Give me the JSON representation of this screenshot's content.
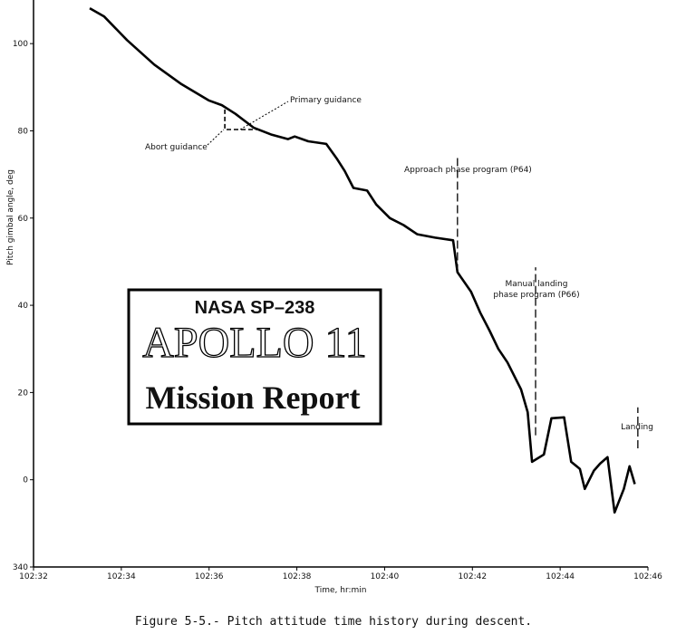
{
  "chart_data": {
    "type": "line",
    "y_label": "Pitch gimbal angle, deg",
    "x_label": "Time, hr:min",
    "caption": "Figure 5-5.- Pitch attitude time history during descent.",
    "xlim": [
      32,
      46
    ],
    "ylim": [
      -20,
      110
    ],
    "xticks": [
      {
        "value": 32,
        "label": "102:32"
      },
      {
        "value": 34,
        "label": "102:34"
      },
      {
        "value": 36,
        "label": "102:36"
      },
      {
        "value": 38,
        "label": "102:38"
      },
      {
        "value": 40,
        "label": "102:40"
      },
      {
        "value": 42,
        "label": "102:42"
      },
      {
        "value": 44,
        "label": "102:44"
      },
      {
        "value": 46,
        "label": "102:46"
      }
    ],
    "yticks": [
      {
        "value": -20,
        "label": "340"
      },
      0,
      20,
      40,
      60,
      80,
      100
    ],
    "series": [
      {
        "name": "Primary guidance",
        "color": "#000000",
        "x": [
          33.28,
          33.61,
          34.13,
          34.75,
          35.37,
          35.99,
          36.29,
          36.6,
          37.02,
          37.43,
          37.8,
          37.95,
          38.26,
          38.67,
          38.92,
          39.09,
          39.29,
          39.6,
          39.81,
          40.12,
          40.43,
          40.74,
          41.15,
          41.56,
          41.66,
          41.97,
          42.18,
          42.39,
          42.59,
          42.8,
          43.11,
          43.26,
          43.36,
          43.63,
          43.8,
          44.09,
          44.25,
          44.45,
          44.56,
          44.77,
          44.91,
          45.08,
          45.24,
          45.45,
          45.58,
          45.7
        ],
        "values": [
          108.1,
          106.2,
          100.8,
          95.2,
          90.7,
          87.0,
          85.9,
          83.9,
          80.7,
          79.1,
          78.1,
          78.7,
          77.6,
          77.0,
          73.5,
          70.8,
          66.9,
          66.3,
          63.1,
          60.0,
          58.4,
          56.3,
          55.5,
          54.9,
          47.6,
          43.1,
          38.3,
          34.2,
          30.0,
          26.9,
          20.7,
          15.5,
          4.1,
          5.8,
          14.1,
          14.3,
          4.1,
          2.5,
          -2.1,
          2.1,
          3.7,
          5.2,
          -7.5,
          -2.1,
          3.1,
          -1.0
        ]
      },
      {
        "name": "Abort guidance",
        "color": "#000000",
        "dashed": true,
        "x": [
          36.36,
          36.36,
          37.08
        ],
        "values": [
          84.9,
          80.3,
          80.3
        ]
      }
    ],
    "events": [
      {
        "label": [
          "Approach  phase program (P64)"
        ],
        "x": 41.66,
        "y": [
          47.6,
          74.5
        ]
      },
      {
        "label": [
          "Manual landing",
          "phase program (P66)"
        ],
        "x": 43.44,
        "y": [
          10.2,
          48.7
        ]
      },
      {
        "label": [
          "Landing"
        ],
        "x": 45.77,
        "y": [
          7.2,
          16.6
        ]
      }
    ],
    "stamp": {
      "publisher": "NASA SP–238",
      "title": "APOLLO 11",
      "subtitle": "Mission Report"
    }
  }
}
